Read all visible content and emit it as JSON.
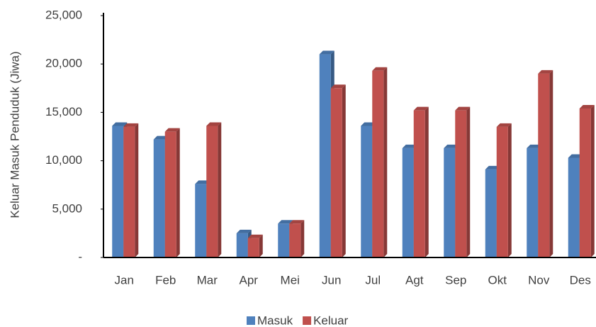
{
  "chart_data": {
    "type": "bar",
    "y_label": "Keluar Masuk Penduduk (Jiwa)",
    "categories": [
      "Jan",
      "Feb",
      "Mar",
      "Apr",
      "Mei",
      "Jun",
      "Jul",
      "Agt",
      "Sep",
      "Okt",
      "Nov",
      "Des"
    ],
    "series": [
      {
        "name": "Masuk",
        "color": "#4f81bd",
        "values": [
          13600,
          12200,
          7600,
          2500,
          3500,
          21000,
          13600,
          11300,
          11300,
          9100,
          11300,
          10300
        ]
      },
      {
        "name": "Keluar",
        "color": "#c0504d",
        "values": [
          13500,
          13000,
          13600,
          2000,
          3500,
          17500,
          19300,
          15200,
          15200,
          13500,
          19000,
          15400
        ]
      }
    ],
    "ylim": [
      0,
      25000
    ],
    "yticks": [
      {
        "value": 0,
        "label": "-"
      },
      {
        "value": 5000,
        "label": "5,000"
      },
      {
        "value": 10000,
        "label": "10,000"
      },
      {
        "value": 15000,
        "label": "15,000"
      },
      {
        "value": 20000,
        "label": "20,000"
      },
      {
        "value": 25000,
        "label": "25,000"
      }
    ],
    "legend": "bottom"
  }
}
